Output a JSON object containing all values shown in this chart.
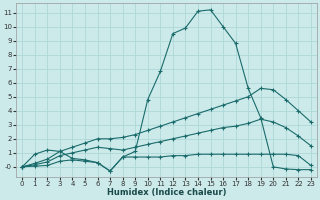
{
  "xlabel": "Humidex (Indice chaleur)",
  "bg_color": "#cdeaea",
  "grid_color": "#afd8d8",
  "line_color": "#1a6b6b",
  "xlim": [
    -0.5,
    23.5
  ],
  "ylim": [
    -0.7,
    11.7
  ],
  "x_ticks": [
    0,
    1,
    2,
    3,
    4,
    5,
    6,
    7,
    8,
    9,
    10,
    11,
    12,
    13,
    14,
    15,
    16,
    17,
    18,
    19,
    20,
    21,
    22,
    23
  ],
  "y_ticks": [
    0,
    1,
    2,
    3,
    4,
    5,
    6,
    7,
    8,
    9,
    10,
    11
  ],
  "series": [
    {
      "x": [
        0,
        1,
        2,
        3,
        4,
        5,
        6,
        7,
        8,
        9,
        10,
        11,
        12,
        13,
        14,
        15,
        16,
        17,
        18,
        19,
        20,
        21,
        22,
        23
      ],
      "y": [
        0.0,
        0.9,
        1.2,
        1.1,
        0.6,
        0.5,
        0.3,
        -0.3,
        0.7,
        1.1,
        4.8,
        6.8,
        9.5,
        9.9,
        11.1,
        11.2,
        10.0,
        8.8,
        5.6,
        3.5,
        0.0,
        -0.15,
        -0.2,
        -0.2
      ]
    },
    {
      "x": [
        0,
        1,
        2,
        3,
        4,
        5,
        6,
        7,
        8,
        9,
        10,
        11,
        12,
        13,
        14,
        15,
        16,
        17,
        18,
        19,
        20,
        21,
        22,
        23
      ],
      "y": [
        0.0,
        0.25,
        0.55,
        1.1,
        1.4,
        1.7,
        2.0,
        2.0,
        2.1,
        2.3,
        2.6,
        2.9,
        3.2,
        3.5,
        3.8,
        4.1,
        4.4,
        4.7,
        5.0,
        5.6,
        5.5,
        4.8,
        4.0,
        3.2
      ]
    },
    {
      "x": [
        0,
        1,
        2,
        3,
        4,
        5,
        6,
        7,
        8,
        9,
        10,
        11,
        12,
        13,
        14,
        15,
        16,
        17,
        18,
        19,
        20,
        21,
        22,
        23
      ],
      "y": [
        0.0,
        0.15,
        0.35,
        0.8,
        1.0,
        1.2,
        1.4,
        1.3,
        1.2,
        1.4,
        1.6,
        1.8,
        2.0,
        2.2,
        2.4,
        2.6,
        2.8,
        2.9,
        3.1,
        3.4,
        3.2,
        2.8,
        2.2,
        1.5
      ]
    },
    {
      "x": [
        0,
        1,
        2,
        3,
        4,
        5,
        6,
        7,
        8,
        9,
        10,
        11,
        12,
        13,
        14,
        15,
        16,
        17,
        18,
        19,
        20,
        21,
        22,
        23
      ],
      "y": [
        0.0,
        0.05,
        0.1,
        0.4,
        0.5,
        0.4,
        0.3,
        -0.3,
        0.7,
        0.7,
        0.7,
        0.7,
        0.8,
        0.8,
        0.9,
        0.9,
        0.9,
        0.9,
        0.9,
        0.9,
        0.9,
        0.9,
        0.8,
        0.1
      ]
    }
  ]
}
